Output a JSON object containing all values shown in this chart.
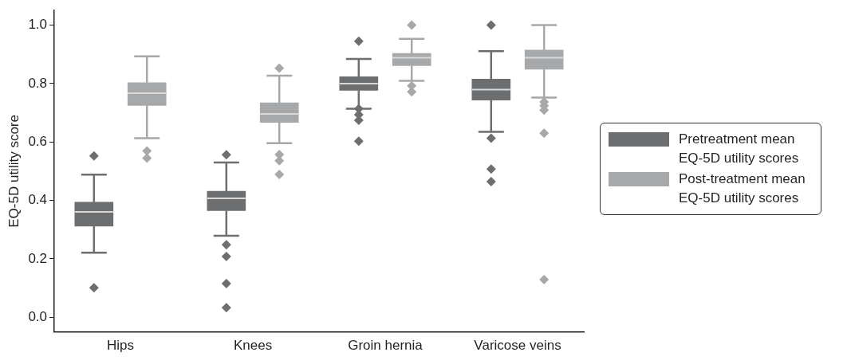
{
  "chart_data": {
    "type": "box",
    "ylabel": "EQ-5D utility score",
    "categories": [
      "Hips",
      "Knees",
      "Groin hernia",
      "Varicose veins"
    ],
    "ylim": [
      -0.05,
      1.05
    ],
    "yticks": [
      {
        "value": 0,
        "label": "0.0"
      },
      0.2,
      0.4,
      0.6,
      0.8,
      {
        "value": 1,
        "label": "1.0"
      }
    ],
    "grid": false,
    "legend": "right",
    "marker": "diamond",
    "series": [
      {
        "name": "Pretreatment mean EQ-5D utility scores",
        "color": "#6d6e70",
        "boxes": [
          {
            "low": 0.221,
            "q1": 0.312,
            "median": 0.361,
            "q3": 0.394,
            "high": 0.488,
            "outliers": [
              0.552,
              0.101
            ]
          },
          {
            "low": 0.279,
            "q1": 0.365,
            "median": 0.407,
            "q3": 0.431,
            "high": 0.53,
            "outliers": [
              0.556,
              0.248,
              0.208,
              0.115,
              0.033
            ]
          },
          {
            "low": 0.714,
            "q1": 0.777,
            "median": 0.8,
            "q3": 0.823,
            "high": 0.884,
            "outliers": [
              0.945,
              0.714,
              0.693,
              0.674,
              0.603
            ]
          },
          {
            "low": 0.635,
            "q1": 0.743,
            "median": 0.779,
            "q3": 0.815,
            "high": 0.911,
            "outliers": [
              1.0,
              0.613,
              0.507,
              0.464
            ]
          }
        ]
      },
      {
        "name": "Post-treatment mean EQ-5D utility scores",
        "color": "#a7a8aa",
        "boxes": [
          {
            "low": 0.613,
            "q1": 0.725,
            "median": 0.767,
            "q3": 0.803,
            "high": 0.893,
            "outliers": [
              0.569,
              0.545
            ]
          },
          {
            "low": 0.596,
            "q1": 0.667,
            "median": 0.696,
            "q3": 0.734,
            "high": 0.827,
            "outliers": [
              0.853,
              0.557,
              0.536,
              0.489
            ]
          },
          {
            "low": 0.809,
            "q1": 0.861,
            "median": 0.888,
            "q3": 0.903,
            "high": 0.953,
            "outliers": [
              1.0,
              0.792,
              0.772
            ]
          },
          {
            "low": 0.752,
            "q1": 0.849,
            "median": 0.888,
            "q3": 0.915,
            "high": 1.0,
            "outliers": [
              0.737,
              0.724,
              0.709,
              0.63,
              0.129
            ]
          }
        ]
      }
    ]
  }
}
